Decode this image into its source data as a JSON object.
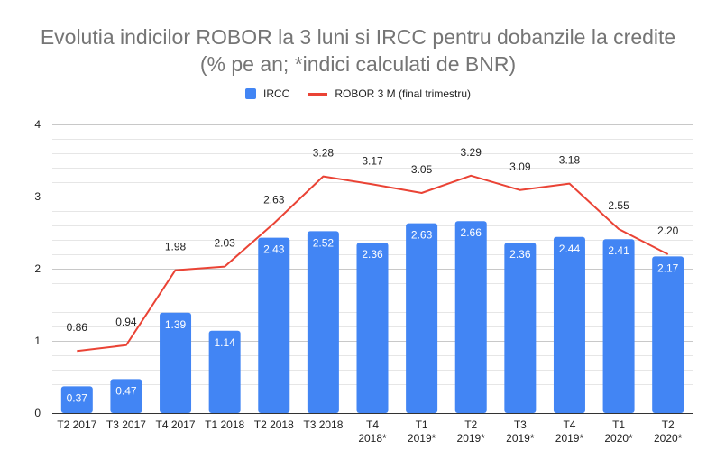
{
  "chart_data": {
    "type": "bar",
    "title_lines": [
      "Evolutia indicilor ROBOR la 3 luni si IRCC pentru dobanzile la credite",
      "(% pe an; *indici calculati de BNR)"
    ],
    "categories": [
      [
        "T2 2017"
      ],
      [
        "T3 2017"
      ],
      [
        "T4 2017"
      ],
      [
        "T1 2018"
      ],
      [
        "T2 2018"
      ],
      [
        "T3 2018"
      ],
      [
        "T4",
        "2018*"
      ],
      [
        "T1",
        "2019*"
      ],
      [
        "T2",
        "2019*"
      ],
      [
        "T3",
        "2019*"
      ],
      [
        "T4",
        "2019*"
      ],
      [
        "T1",
        "2020*"
      ],
      [
        "T2",
        "2020*"
      ]
    ],
    "series": [
      {
        "name": "IRCC",
        "kind": "bar",
        "color": "#4285f4",
        "values": [
          0.37,
          0.47,
          1.39,
          1.14,
          2.43,
          2.52,
          2.36,
          2.63,
          2.66,
          2.36,
          2.44,
          2.41,
          2.17
        ],
        "labels": [
          "0.37",
          "0.47",
          "1.39",
          "1.14",
          "2.43",
          "2.52",
          "2.36",
          "2.63",
          "2.66",
          "2.36",
          "2.44",
          "2.41",
          "2.17"
        ]
      },
      {
        "name": "ROBOR 3 M (final trimestru)",
        "kind": "line",
        "color": "#ea4335",
        "values": [
          0.86,
          0.94,
          1.98,
          2.03,
          2.63,
          3.28,
          3.17,
          3.05,
          3.29,
          3.09,
          3.18,
          2.55,
          2.2
        ],
        "labels": [
          "0.86",
          "0.94",
          "1.98",
          "2.03",
          "2.63",
          "3.28",
          "3.17",
          "3.05",
          "3.29",
          "3.09",
          "3.18",
          "2.55",
          "2.20"
        ]
      }
    ],
    "yticks": [
      "0",
      "1",
      "2",
      "3",
      "4"
    ],
    "ylim": [
      0,
      4
    ],
    "grid": true,
    "minor_grid_steps": 5,
    "legend_position": "top"
  }
}
